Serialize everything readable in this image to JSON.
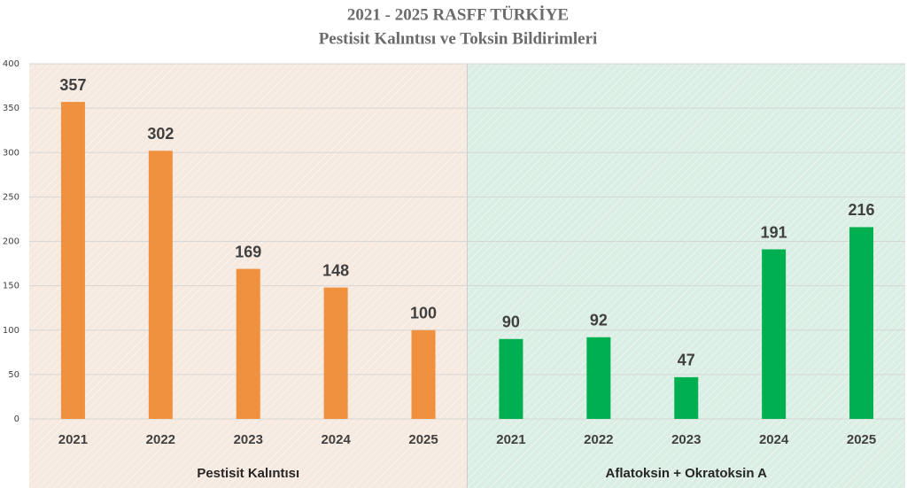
{
  "chart_data": {
    "type": "bar",
    "title": "2021 - 2025 RASFF TÜRKİYE",
    "subtitle": "Pestisit Kalıntısı ve Toksin Bildirimleri",
    "ylim": [
      0,
      400
    ],
    "yticks": [
      0,
      50,
      100,
      150,
      200,
      250,
      300,
      350,
      400
    ],
    "grid": true,
    "groups": [
      {
        "name": "Pestisit Kalıntısı",
        "color": "#f0913f",
        "background": "#f6e9df",
        "categories": [
          "2021",
          "2022",
          "2023",
          "2024",
          "2025"
        ],
        "values": [
          357,
          302,
          169,
          148,
          100
        ]
      },
      {
        "name": "Aflatoksin + Okratoksin A",
        "color": "#00b050",
        "background": "#dbeee4",
        "categories": [
          "2021",
          "2022",
          "2023",
          "2024",
          "2025"
        ],
        "values": [
          90,
          92,
          47,
          191,
          216
        ]
      }
    ]
  }
}
